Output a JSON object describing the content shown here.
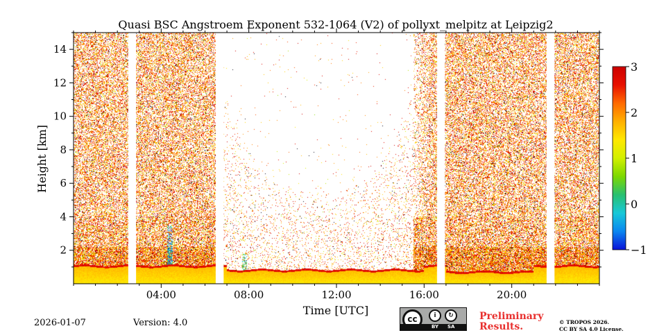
{
  "chart_data": {
    "type": "heatmap",
    "title": "Quasi BSC Angstroem Exponent 532-1064 (V2) of pollyxt_melpitz at Leipzig2",
    "xlabel": "Time [UTC]",
    "ylabel": "Height [km]",
    "xlim_hours": [
      0,
      24
    ],
    "ylim_km": [
      0,
      15
    ],
    "x_ticks": [
      {
        "value": 4,
        "label": "04:00"
      },
      {
        "value": 8,
        "label": "08:00"
      },
      {
        "value": 12,
        "label": "12:00"
      },
      {
        "value": 16,
        "label": "16:00"
      },
      {
        "value": 20,
        "label": "20:00"
      }
    ],
    "y_ticks": [
      {
        "value": 2,
        "label": "2"
      },
      {
        "value": 4,
        "label": "4"
      },
      {
        "value": 6,
        "label": "6"
      },
      {
        "value": 8,
        "label": "8"
      },
      {
        "value": 10,
        "label": "10"
      },
      {
        "value": 12,
        "label": "12"
      },
      {
        "value": 14,
        "label": "14"
      }
    ],
    "colorbar": {
      "min": -1,
      "max": 3,
      "ticks": [
        {
          "value": -1,
          "label": "−1"
        },
        {
          "value": 0,
          "label": "0"
        },
        {
          "value": 1,
          "label": "1"
        },
        {
          "value": 2,
          "label": "2"
        },
        {
          "value": 3,
          "label": "3"
        }
      ],
      "colormap": [
        "#0a12d8",
        "#0a86f0",
        "#18c8d8",
        "#28c070",
        "#7cd800",
        "#d2f000",
        "#ffe800",
        "#ffb000",
        "#ff6a00",
        "#e81000",
        "#cc0000"
      ]
    },
    "data_gaps_hours": [
      [
        2.5,
        2.85
      ],
      [
        6.5,
        6.85
      ],
      [
        16.6,
        16.95
      ],
      [
        21.6,
        21.95
      ]
    ],
    "features": {
      "near_surface_layer_top_km": 1.1,
      "typical_layer_values": [
        1.4,
        2.0
      ],
      "low_exponent_plumes": [
        {
          "time_hours": 4.4,
          "top_km": 3.5,
          "value": -0.3
        },
        {
          "time_hours": 7.8,
          "top_km": 1.8,
          "value": 0.2
        }
      ],
      "noisy_signal_periods_hours": [
        [
          0,
          6.5
        ],
        [
          15.5,
          24
        ]
      ],
      "clear_period_hours": [
        6.9,
        15.5
      ]
    }
  },
  "footer": {
    "date": "2026-01-07",
    "version": "Version: 4.0",
    "preliminary": "Preliminary\nResults.",
    "copyright_line1": "© TROPOS 2026.",
    "copyright_line2": "CC BY SA 4.0 License.",
    "cc_badge": {
      "main": "cc",
      "by": "BY",
      "sa": "SA"
    }
  }
}
